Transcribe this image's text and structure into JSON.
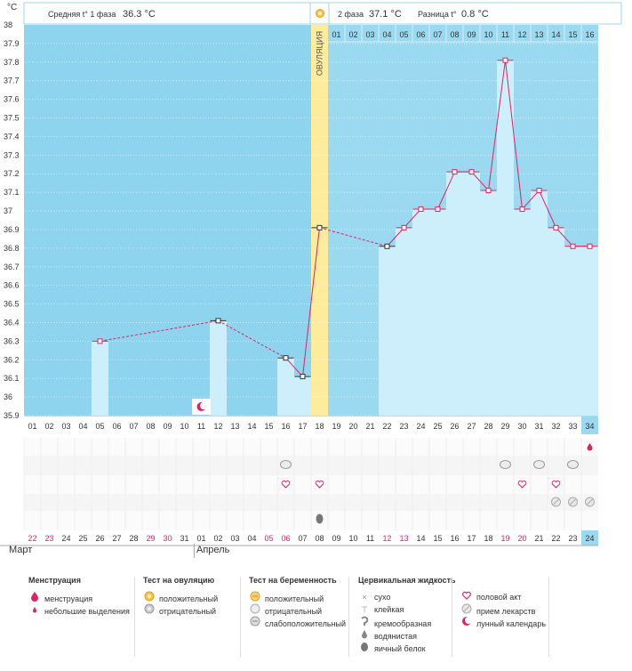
{
  "header": {
    "unit": "°C",
    "phase1_label": "Средняя t° 1 фаза",
    "phase1_value": "36.3 °C",
    "phase2_label": "2 фаза",
    "phase2_value": "37.1 °C",
    "diff_label": "Разница t°",
    "diff_value": "0.8 °C",
    "ovulation_label": "ОВУЛЯЦИЯ"
  },
  "colors": {
    "phase1_bg": "#8ed4ef",
    "phase2_bg": "#9bd9f1",
    "bar": "#cdeefb",
    "ovulation": "#fdec9c",
    "line": "#e0225f",
    "weekend": "#e0225f"
  },
  "chart_data": {
    "type": "line",
    "ylim": [
      35.9,
      38.0
    ],
    "yticks": [
      "38",
      "37.9",
      "37.8",
      "37.7",
      "37.6",
      "37.5",
      "37.4",
      "37.3",
      "37.2",
      "37.1",
      "37",
      "36.9",
      "36.8",
      "36.7",
      "36.6",
      "36.5",
      "36.4",
      "36.3",
      "36.2",
      "36.1",
      "36",
      "35.9"
    ],
    "cycle_days": [
      "01",
      "02",
      "03",
      "04",
      "05",
      "06",
      "07",
      "08",
      "09",
      "10",
      "11",
      "12",
      "13",
      "14",
      "15",
      "16",
      "17",
      "18",
      "19",
      "20",
      "21",
      "22",
      "23",
      "24",
      "25",
      "26",
      "27",
      "28",
      "29",
      "30",
      "31",
      "32",
      "33",
      "34"
    ],
    "dates": [
      "22",
      "23",
      "24",
      "25",
      "26",
      "27",
      "28",
      "29",
      "30",
      "31",
      "01",
      "02",
      "03",
      "04",
      "05",
      "06",
      "07",
      "08",
      "09",
      "10",
      "11",
      "12",
      "13",
      "14",
      "15",
      "16",
      "17",
      "18",
      "19",
      "20",
      "21",
      "22",
      "23",
      "24"
    ],
    "date_weekend": [
      true,
      true,
      false,
      false,
      false,
      false,
      false,
      true,
      true,
      false,
      false,
      false,
      false,
      false,
      true,
      true,
      false,
      false,
      false,
      false,
      false,
      true,
      true,
      false,
      false,
      false,
      false,
      false,
      true,
      true,
      false,
      false,
      false,
      false
    ],
    "post_ovulation_days": [
      "01",
      "02",
      "03",
      "04",
      "05",
      "06",
      "07",
      "08",
      "09",
      "10",
      "11",
      "12",
      "13",
      "14",
      "15",
      "16"
    ],
    "temperatures": [
      {
        "day": 5,
        "value": 36.3
      },
      {
        "day": 12,
        "value": 36.41
      },
      {
        "day": 16,
        "value": 36.21
      },
      {
        "day": 17,
        "value": 36.11
      },
      {
        "day": 18,
        "value": 36.91
      },
      {
        "day": 22,
        "value": 36.81
      },
      {
        "day": 23,
        "value": 36.91
      },
      {
        "day": 24,
        "value": 37.01
      },
      {
        "day": 25,
        "value": 37.01
      },
      {
        "day": 26,
        "value": 37.21
      },
      {
        "day": 27,
        "value": 37.21
      },
      {
        "day": 28,
        "value": 37.11
      },
      {
        "day": 29,
        "value": 37.81
      },
      {
        "day": 30,
        "value": 37.01
      },
      {
        "day": 31,
        "value": 37.11
      },
      {
        "day": 32,
        "value": 36.91
      },
      {
        "day": 33,
        "value": 36.81
      },
      {
        "day": 34,
        "value": 36.81
      }
    ],
    "ovulation_day": 18,
    "current_day": 34,
    "months": [
      "Март",
      "Апрель"
    ],
    "month_start_days": [
      1,
      11
    ]
  },
  "event_rows": {
    "row1": [
      {
        "day": 34,
        "icon": "drop-small-icon"
      }
    ],
    "row2": [
      {
        "day": 16,
        "icon": "cervical-creamy-icon"
      },
      {
        "day": 29,
        "icon": "cervical-creamy-icon"
      },
      {
        "day": 31,
        "icon": "cervical-creamy-icon"
      },
      {
        "day": 33,
        "icon": "cervical-creamy-icon"
      }
    ],
    "row3": [
      {
        "day": 16,
        "icon": "heart-icon"
      },
      {
        "day": 18,
        "icon": "heart-icon"
      },
      {
        "day": 30,
        "icon": "heart-icon"
      },
      {
        "day": 32,
        "icon": "heart-icon"
      }
    ],
    "row4": [
      {
        "day": 32,
        "icon": "pill-icon"
      },
      {
        "day": 33,
        "icon": "pill-icon"
      },
      {
        "day": 34,
        "icon": "pill-icon"
      }
    ],
    "row5": [
      {
        "day": 18,
        "icon": "egg-white-icon"
      }
    ],
    "moon": [
      {
        "day": 11,
        "icon": "moon-icon"
      }
    ]
  },
  "legend": {
    "menstruation": {
      "title": "Менструация",
      "items": [
        "менструация",
        "небольшие выделения"
      ]
    },
    "ovulation_test": {
      "title": "Тест на овуляцию",
      "items": [
        "положительный",
        "отрицательный"
      ]
    },
    "pregnancy_test": {
      "title": "Тест на беременность",
      "items": [
        "положительный",
        "отрицательный",
        "слабоположительный"
      ]
    },
    "cervical": {
      "title": "Цервикальная жидкость",
      "items": [
        "сухо",
        "клейкая",
        "кремообразная",
        "водянистая",
        "яичный белок"
      ]
    },
    "other": {
      "items": [
        "половой акт",
        "прием лекарств",
        "лунный календарь"
      ]
    }
  }
}
